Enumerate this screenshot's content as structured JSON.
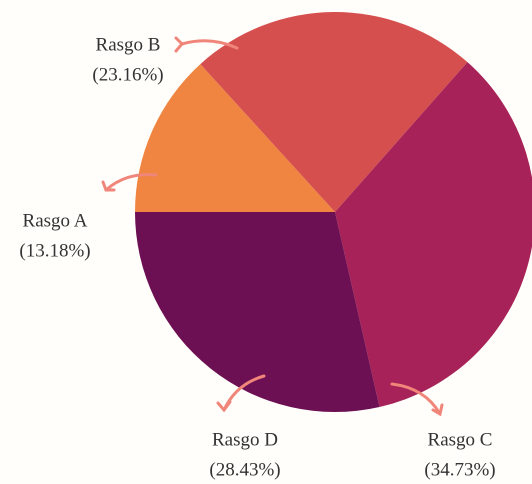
{
  "chart_data": {
    "type": "pie",
    "categories": [
      "Rasgo A",
      "Rasgo B",
      "Rasgo C",
      "Rasgo D"
    ],
    "values": [
      13.18,
      23.16,
      34.73,
      28.43
    ],
    "value_labels": [
      "(13.18%)",
      "(23.16%)",
      "(34.73%)",
      "(28.43%)"
    ],
    "colors": [
      "#ef8540",
      "#d64f4f",
      "#a62258",
      "#6d1053"
    ]
  }
}
